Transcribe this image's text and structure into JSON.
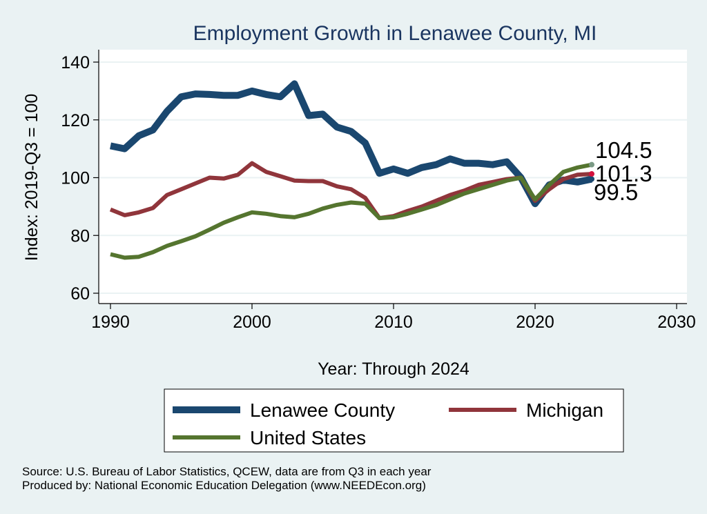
{
  "chart_data": {
    "type": "line",
    "title": "Employment Growth in Lenawee County, MI",
    "xlabel": "Year: Through 2024",
    "ylabel": "Index: 2019-Q3 = 100",
    "xlim": [
      1990,
      2030
    ],
    "ylim": [
      60,
      140
    ],
    "xticks": [
      1990,
      2000,
      2010,
      2020,
      2030
    ],
    "yticks": [
      60,
      80,
      100,
      120,
      140
    ],
    "grid": true,
    "legend_position": "bottom",
    "x": [
      1990,
      1991,
      1992,
      1993,
      1994,
      1995,
      1996,
      1997,
      1998,
      1999,
      2000,
      2001,
      2002,
      2003,
      2004,
      2005,
      2006,
      2007,
      2008,
      2009,
      2010,
      2011,
      2012,
      2013,
      2014,
      2015,
      2016,
      2017,
      2018,
      2019,
      2020,
      2021,
      2022,
      2023,
      2024
    ],
    "series": [
      {
        "name": "Lenawee  County",
        "color": "#1a476f",
        "end_label": "99.5",
        "end_dot_color": "#1a476f",
        "values": [
          111,
          110,
          114.5,
          116.5,
          123,
          128,
          129,
          128.8,
          128.5,
          128.5,
          130,
          128.8,
          128,
          132.5,
          121.5,
          122,
          117.5,
          116,
          112,
          101.5,
          103,
          101.5,
          103.5,
          104.5,
          106.5,
          105,
          105,
          104.5,
          105.5,
          100,
          91,
          97.5,
          99.2,
          98.5,
          99.5
        ]
      },
      {
        "name": "Michigan",
        "color": "#90353b",
        "end_label": "101.3",
        "end_dot_color": "#d2103c",
        "values": [
          89,
          87,
          88,
          89.5,
          94,
          96,
          98,
          100,
          99.7,
          101,
          105,
          102,
          100.5,
          99,
          98.8,
          98.8,
          97,
          96,
          93,
          86,
          86.7,
          88.5,
          90,
          92,
          94,
          95.5,
          97.5,
          98.5,
          99.5,
          100,
          92,
          96,
          99.5,
          101,
          101.3
        ]
      },
      {
        "name": "United States",
        "color": "#55752f",
        "end_label": "104.5",
        "end_dot_color": "#7a9a85",
        "values": [
          73.5,
          72.3,
          72.6,
          74.2,
          76.4,
          78,
          79.7,
          82,
          84.4,
          86.3,
          88,
          87.5,
          86.7,
          86.3,
          87.5,
          89.3,
          90.6,
          91.4,
          91,
          86,
          86.3,
          87.5,
          89,
          90.5,
          92.5,
          94.5,
          96,
          97.5,
          99,
          100,
          92.5,
          97.5,
          102,
          103.5,
          104.5
        ]
      }
    ]
  },
  "footer": {
    "source": "Source: U.S. Bureau of Labor Statistics, QCEW, data are from Q3 in each year",
    "producer": "Produced by: National Economic Education Delegation (www.NEEDEcon.org)"
  }
}
